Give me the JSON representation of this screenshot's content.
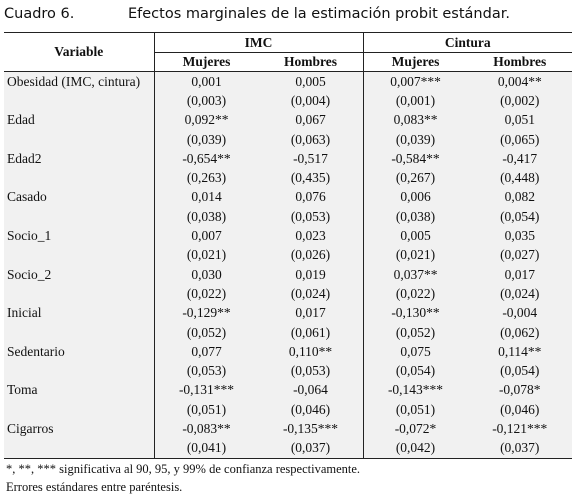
{
  "caption": {
    "label": "Cuadro 6.",
    "title": "Efectos marginales de la estimación probit estándar."
  },
  "table": {
    "variable_header": "Variable",
    "groups": [
      "IMC",
      "Cintura"
    ],
    "subheaders": [
      "Mujeres",
      "Hombres",
      "Mujeres",
      "Hombres"
    ],
    "rows": [
      {
        "variable": "Obesidad (IMC, cintura)",
        "coef": [
          "0,001",
          "0,005",
          "0,007***",
          "0,004**"
        ],
        "se": [
          "(0,003)",
          "(0,004)",
          "(0,001)",
          "(0,002)"
        ]
      },
      {
        "variable": "Edad",
        "coef": [
          "0,092**",
          "0,067",
          "0,083**",
          "0,051"
        ],
        "se": [
          "(0,039)",
          "(0,063)",
          "(0,039)",
          "(0,065)"
        ]
      },
      {
        "variable": "Edad2",
        "coef": [
          "-0,654**",
          "-0,517",
          "-0,584**",
          "-0,417"
        ],
        "se": [
          "(0,263)",
          "(0,435)",
          "(0,267)",
          "(0,448)"
        ]
      },
      {
        "variable": "Casado",
        "coef": [
          "0,014",
          "0,076",
          "0,006",
          "0,082"
        ],
        "se": [
          "(0,038)",
          "(0,053)",
          "(0,038)",
          "(0,054)"
        ]
      },
      {
        "variable": "Socio_1",
        "coef": [
          "0,007",
          "0,023",
          "0,005",
          "0,035"
        ],
        "se": [
          "(0,021)",
          "(0,026)",
          "(0,021)",
          "(0,027)"
        ]
      },
      {
        "variable": "Socio_2",
        "coef": [
          "0,030",
          "0,019",
          "0,037**",
          "0,017"
        ],
        "se": [
          "(0,022)",
          "(0,024)",
          "(0,022)",
          "(0,024)"
        ]
      },
      {
        "variable": "Inicial",
        "coef": [
          "-0,129**",
          "0,017",
          "-0,130**",
          "-0,004"
        ],
        "se": [
          "(0,052)",
          "(0,061)",
          "(0,052)",
          "(0,062)"
        ]
      },
      {
        "variable": "Sedentario",
        "coef": [
          "0,077",
          "0,110**",
          "0,075",
          "0,114**"
        ],
        "se": [
          "(0,053)",
          "(0,053)",
          "(0,054)",
          "(0,054)"
        ]
      },
      {
        "variable": "Toma",
        "coef": [
          "-0,131***",
          "-0,064",
          "-0,143***",
          "-0,078*"
        ],
        "se": [
          "(0,051)",
          "(0,046)",
          "(0,051)",
          "(0,046)"
        ]
      },
      {
        "variable": "Cigarros",
        "coef": [
          "-0,083**",
          "-0,135***",
          "-0,072*",
          "-0,121***"
        ],
        "se": [
          "(0,041)",
          "(0,037)",
          "(0,042)",
          "(0,037)"
        ]
      }
    ]
  },
  "notes": [
    "*, **, *** significativa al 90, 95, y 99% de confianza respectivamente.",
    "Errores estándares entre paréntesis."
  ]
}
